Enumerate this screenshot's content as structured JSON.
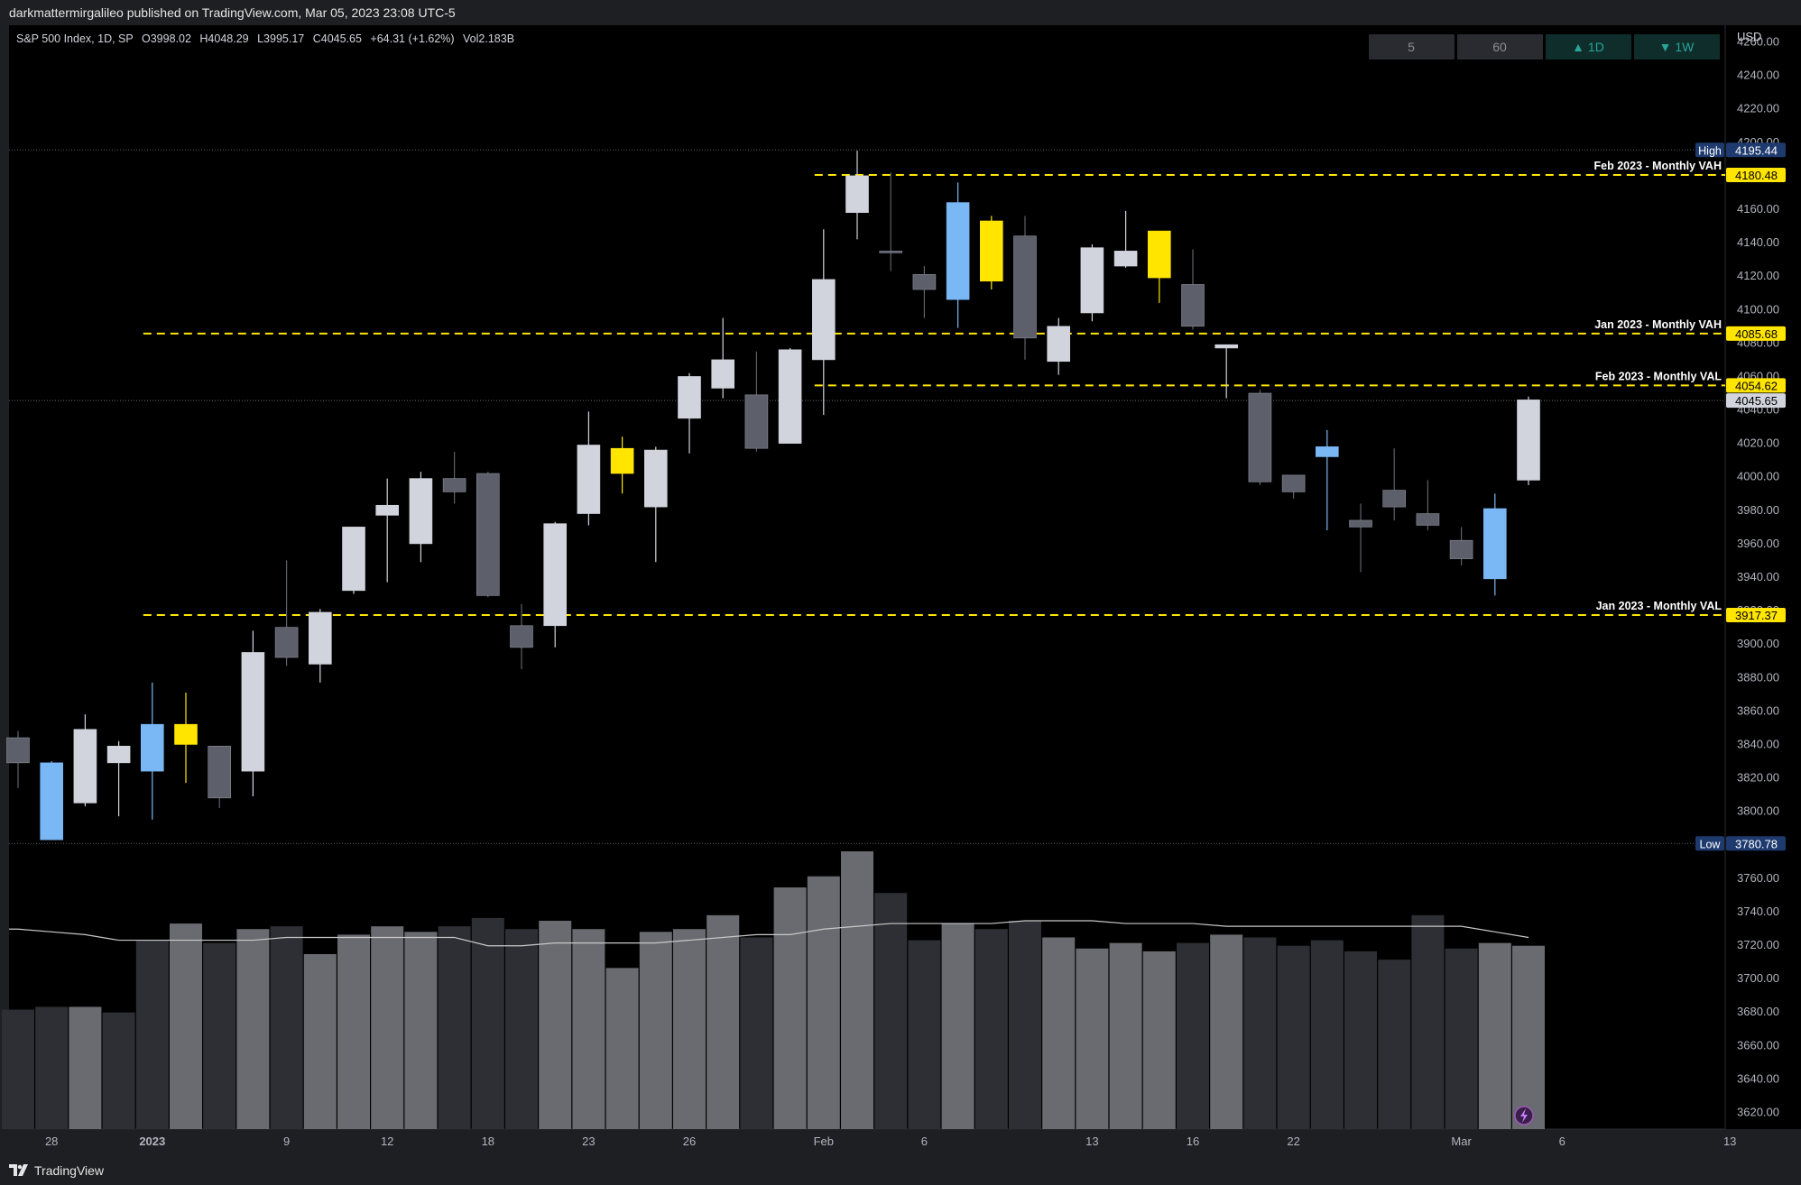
{
  "header": {
    "publisher": "darkmattermirgalileo published on TradingView.com, Mar 05, 2023 23:08 UTC-5"
  },
  "legend": {
    "symbol": "S&P 500 Index, 1D, SP",
    "o_label": "O",
    "o": "3998.02",
    "h_label": "H",
    "h": "4048.29",
    "l_label": "L",
    "l": "3995.17",
    "c_label": "C",
    "c": "4045.65",
    "change": "+64.31 (+1.62%)",
    "vol_label": "Vol",
    "vol": "2.183B"
  },
  "interval_buttons": [
    {
      "label": "5",
      "active": false
    },
    {
      "label": "60",
      "active": false
    },
    {
      "label": "▲ 1D",
      "active": true,
      "color": "#26a69a"
    },
    {
      "label": "▼ 1W",
      "active": true,
      "color": "#26a69a"
    }
  ],
  "footer": {
    "brand": "TradingView"
  },
  "chart_data": {
    "type": "candlestick",
    "currency": "USD",
    "ylim": [
      3610,
      4270
    ],
    "y_ticks": [
      3620,
      3640,
      3660,
      3680,
      3700,
      3720,
      3740,
      3760,
      3780,
      3800,
      3820,
      3840,
      3860,
      3880,
      3900,
      3920,
      3940,
      3960,
      3980,
      4000,
      4020,
      4040,
      4060,
      4080,
      4100,
      4120,
      4140,
      4160,
      4180,
      4200,
      4220,
      4240,
      4260
    ],
    "x_tick_labels": [
      {
        "i": 1,
        "label": "28"
      },
      {
        "i": 4,
        "label": "2023",
        "bold": true
      },
      {
        "i": 8,
        "label": "9"
      },
      {
        "i": 11,
        "label": "12"
      },
      {
        "i": 14,
        "label": "18"
      },
      {
        "i": 17,
        "label": "23"
      },
      {
        "i": 20,
        "label": "26"
      },
      {
        "i": 24,
        "label": "Feb"
      },
      {
        "i": 27,
        "label": "6"
      },
      {
        "i": 32,
        "label": "13"
      },
      {
        "i": 35,
        "label": "16"
      },
      {
        "i": 38,
        "label": "22"
      },
      {
        "i": 43,
        "label": "Mar"
      },
      {
        "i": 46,
        "label": "6"
      },
      {
        "i": 51,
        "label": "13"
      }
    ],
    "colors": {
      "up": "#d1d4dc",
      "down": "#5d606b",
      "highlight_blue": "#7ab8f5",
      "highlight_yellow": "#ffe500",
      "level_line": "#ffe500",
      "vol_light": "#6a6b70",
      "vol_dark": "#2e2f34"
    },
    "candles": [
      {
        "o": 3844,
        "h": 3848,
        "l": 3814,
        "c": 3829,
        "color": "down"
      },
      {
        "o": 3829,
        "h": 3830,
        "l": 3783,
        "c": 3783,
        "color": "blue"
      },
      {
        "o": 3805,
        "h": 3858,
        "l": 3803,
        "c": 3849,
        "color": "up"
      },
      {
        "o": 3829,
        "h": 3842,
        "l": 3797,
        "c": 3839,
        "color": "up"
      },
      {
        "o": 3824,
        "h": 3877,
        "l": 3795,
        "c": 3852,
        "color": "blue"
      },
      {
        "o": 3852,
        "h": 3871,
        "l": 3817,
        "c": 3840,
        "color": "yellow"
      },
      {
        "o": 3839,
        "h": 3839,
        "l": 3802,
        "c": 3808,
        "color": "down"
      },
      {
        "o": 3824,
        "h": 3908,
        "l": 3809,
        "c": 3895,
        "color": "up"
      },
      {
        "o": 3910,
        "h": 3950,
        "l": 3887,
        "c": 3892,
        "color": "down"
      },
      {
        "o": 3888,
        "h": 3921,
        "l": 3877,
        "c": 3919,
        "color": "up"
      },
      {
        "o": 3932,
        "h": 3970,
        "l": 3930,
        "c": 3970,
        "color": "up"
      },
      {
        "o": 3977,
        "h": 3999,
        "l": 3937,
        "c": 3983,
        "color": "up"
      },
      {
        "o": 3960,
        "h": 4003,
        "l": 3949,
        "c": 3999,
        "color": "up"
      },
      {
        "o": 3999,
        "h": 4015,
        "l": 3984,
        "c": 3991,
        "color": "down"
      },
      {
        "o": 4002,
        "h": 4003,
        "l": 3928,
        "c": 3929,
        "color": "down"
      },
      {
        "o": 3911,
        "h": 3924,
        "l": 3885,
        "c": 3898,
        "color": "down"
      },
      {
        "o": 3911,
        "h": 3973,
        "l": 3898,
        "c": 3972,
        "color": "up"
      },
      {
        "o": 3978,
        "h": 4039,
        "l": 3971,
        "c": 4019,
        "color": "up"
      },
      {
        "o": 4002,
        "h": 4024,
        "l": 3990,
        "c": 4017,
        "color": "yellow"
      },
      {
        "o": 3982,
        "h": 4018,
        "l": 3949,
        "c": 4016,
        "color": "up"
      },
      {
        "o": 4035,
        "h": 4062,
        "l": 4014,
        "c": 4060,
        "color": "up"
      },
      {
        "o": 4053,
        "h": 4095,
        "l": 4047,
        "c": 4070,
        "color": "up"
      },
      {
        "o": 4049,
        "h": 4075,
        "l": 4015,
        "c": 4017,
        "color": "down"
      },
      {
        "o": 4020,
        "h": 4077,
        "l": 4020,
        "c": 4076,
        "color": "up"
      },
      {
        "o": 4070,
        "h": 4148,
        "l": 4037,
        "c": 4118,
        "color": "up"
      },
      {
        "o": 4158,
        "h": 4195,
        "l": 4142,
        "c": 4180,
        "color": "up"
      },
      {
        "o": 4135,
        "h": 4182,
        "l": 4123,
        "c": 4135,
        "color": "down"
      },
      {
        "o": 4121,
        "h": 4126,
        "l": 4095,
        "c": 4112,
        "color": "down"
      },
      {
        "o": 4106,
        "h": 4176,
        "l": 4089,
        "c": 4164,
        "color": "blue"
      },
      {
        "o": 4153,
        "h": 4156,
        "l": 4112,
        "c": 4117,
        "color": "yellow"
      },
      {
        "o": 4144,
        "h": 4156,
        "l": 4070,
        "c": 4083,
        "color": "down"
      },
      {
        "o": 4069,
        "h": 4095,
        "l": 4061,
        "c": 4090,
        "color": "up"
      },
      {
        "o": 4098,
        "h": 4139,
        "l": 4093,
        "c": 4137,
        "color": "up"
      },
      {
        "o": 4126,
        "h": 4159,
        "l": 4125,
        "c": 4135,
        "color": "up"
      },
      {
        "o": 4147,
        "h": 4147,
        "l": 4104,
        "c": 4119,
        "color": "yellow"
      },
      {
        "o": 4115,
        "h": 4136,
        "l": 4088,
        "c": 4090,
        "color": "down"
      },
      {
        "o": 4077,
        "h": 4078,
        "l": 4047,
        "c": 4079,
        "color": "up"
      },
      {
        "o": 4050,
        "h": 4052,
        "l": 3995,
        "c": 3997,
        "color": "down"
      },
      {
        "o": 4001,
        "h": 4001,
        "l": 3987,
        "c": 3991,
        "color": "down"
      },
      {
        "o": 4012,
        "h": 4028,
        "l": 3968,
        "c": 4018,
        "color": "blue"
      },
      {
        "o": 3974,
        "h": 3984,
        "l": 3943,
        "c": 3970,
        "color": "down"
      },
      {
        "o": 3992,
        "h": 4017,
        "l": 3974,
        "c": 3982,
        "color": "down"
      },
      {
        "o": 3978,
        "h": 3998,
        "l": 3968,
        "c": 3971,
        "color": "down"
      },
      {
        "o": 3962,
        "h": 3970,
        "l": 3947,
        "c": 3951,
        "color": "down"
      },
      {
        "o": 3939,
        "h": 3990,
        "l": 3929,
        "c": 3981,
        "color": "blue"
      },
      {
        "o": 3998,
        "h": 4048,
        "l": 3995,
        "c": 4046,
        "color": "up"
      }
    ],
    "volume": {
      "values": [
        0.43,
        0.44,
        0.44,
        0.42,
        0.68,
        0.74,
        0.67,
        0.72,
        0.73,
        0.63,
        0.7,
        0.73,
        0.71,
        0.73,
        0.76,
        0.72,
        0.75,
        0.72,
        0.58,
        0.71,
        0.72,
        0.77,
        0.69,
        0.87,
        0.91,
        1.0,
        0.85,
        0.68,
        0.74,
        0.72,
        0.75,
        0.69,
        0.65,
        0.67,
        0.64,
        0.67,
        0.7,
        0.69,
        0.66,
        0.68,
        0.64,
        0.61,
        0.77,
        0.65,
        0.67,
        0.66
      ],
      "tone": [
        "dark",
        "dark",
        "light",
        "dark",
        "dark",
        "light",
        "dark",
        "light",
        "dark",
        "light",
        "light",
        "light",
        "light",
        "dark",
        "dark",
        "dark",
        "light",
        "light",
        "light",
        "light",
        "light",
        "light",
        "dark",
        "light",
        "light",
        "light",
        "dark",
        "dark",
        "light",
        "dark",
        "dark",
        "light",
        "light",
        "light",
        "light",
        "dark",
        "light",
        "dark",
        "dark",
        "dark",
        "dark",
        "dark",
        "dark",
        "dark",
        "light",
        "light"
      ],
      "ma": [
        0.72,
        0.71,
        0.7,
        0.68,
        0.68,
        0.68,
        0.68,
        0.68,
        0.69,
        0.69,
        0.69,
        0.69,
        0.69,
        0.69,
        0.66,
        0.66,
        0.67,
        0.67,
        0.67,
        0.67,
        0.68,
        0.69,
        0.7,
        0.7,
        0.72,
        0.73,
        0.74,
        0.74,
        0.74,
        0.74,
        0.75,
        0.75,
        0.75,
        0.74,
        0.74,
        0.74,
        0.73,
        0.73,
        0.73,
        0.73,
        0.73,
        0.73,
        0.73,
        0.73,
        0.71,
        0.69
      ]
    },
    "levels": [
      {
        "label": "Feb 2023 - Monthly VAH",
        "value": "4180.48",
        "y": 4180.48,
        "start": 24
      },
      {
        "label": "Jan 2023 - Monthly VAH",
        "value": "4085.68",
        "y": 4085.68,
        "start": 4
      },
      {
        "label": "Feb 2023 - Monthly VAL",
        "value": "4054.62",
        "y": 4054.62,
        "start": 24
      },
      {
        "label": "Jan 2023 - Monthly VAL",
        "value": "3917.37",
        "y": 3917.37,
        "start": 4
      }
    ],
    "high": {
      "label": "High",
      "value": "4195.44",
      "y": 4195.44
    },
    "low": {
      "label": "Low",
      "value": "3780.78",
      "y": 3780.78
    },
    "last_price": {
      "value": "4045.65",
      "y": 4045.65
    }
  }
}
